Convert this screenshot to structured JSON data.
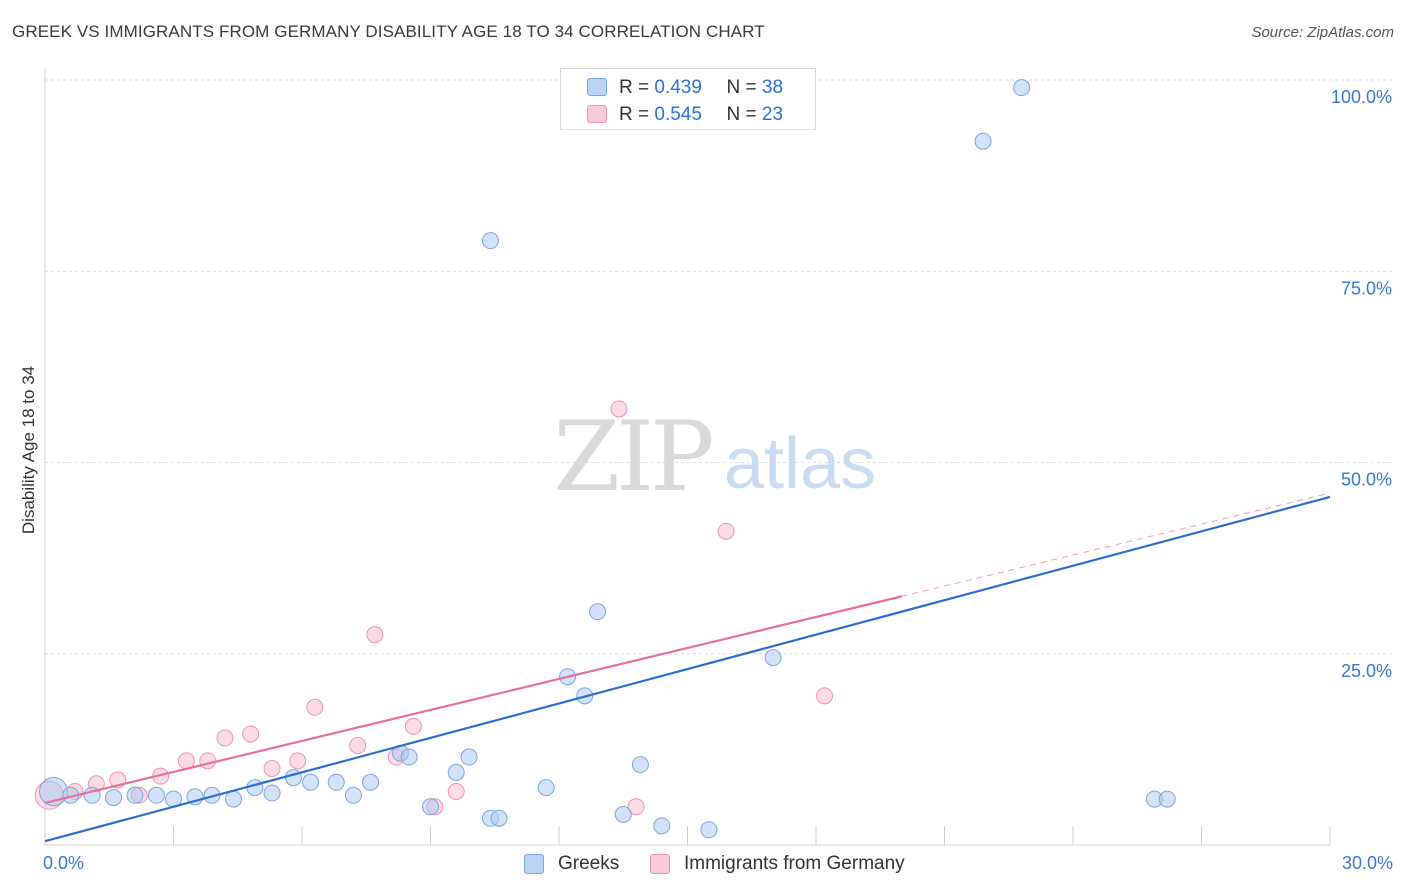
{
  "header": {
    "title": "GREEK VS IMMIGRANTS FROM GERMANY DISABILITY AGE 18 TO 34 CORRELATION CHART",
    "source": "Source: ZipAtlas.com"
  },
  "watermark": {
    "zip": "ZIP",
    "atlas": "atlas"
  },
  "legend": {
    "r_label": "R =",
    "n_label": "N =",
    "greeks": {
      "r": "0.439",
      "n": "38"
    },
    "germany": {
      "r": "0.545",
      "n": "23"
    }
  },
  "colors": {
    "greeks_fill": "#aecbf2",
    "greeks_stroke": "#7aa6e0",
    "greeks_line": "#2d6fd0",
    "germany_fill": "#f7bfd0",
    "germany_stroke": "#ee92b0",
    "germany_line": "#e7709a",
    "tick_text": "#3a78cf",
    "grid": "#dcdcdc"
  },
  "chart_data": {
    "type": "scatter",
    "title": "GREEK VS IMMIGRANTS FROM GERMANY DISABILITY AGE 18 TO 34 CORRELATION CHART",
    "xlabel": "",
    "ylabel": "Disability Age 18 to 34",
    "xlim": [
      0,
      30
    ],
    "ylim": [
      0,
      100
    ],
    "x_tick_labels": [
      "0.0%",
      "30.0%"
    ],
    "y_tick_values": [
      25,
      50,
      75,
      100
    ],
    "y_tick_labels": [
      "25.0%",
      "50.0%",
      "75.0%",
      "100.0%"
    ],
    "grid": true,
    "legend_position": "top-center",
    "series": [
      {
        "name": "Greeks",
        "r": 0.439,
        "n": 38,
        "points": [
          [
            0.2,
            7.0
          ],
          [
            0.6,
            6.5
          ],
          [
            1.1,
            6.5
          ],
          [
            1.6,
            6.2
          ],
          [
            2.1,
            6.5
          ],
          [
            2.6,
            6.5
          ],
          [
            3.0,
            6.0
          ],
          [
            3.5,
            6.3
          ],
          [
            3.9,
            6.5
          ],
          [
            4.4,
            6.0
          ],
          [
            4.9,
            7.5
          ],
          [
            5.3,
            6.8
          ],
          [
            5.8,
            8.8
          ],
          [
            6.2,
            8.2
          ],
          [
            6.8,
            8.2
          ],
          [
            7.2,
            6.5
          ],
          [
            7.6,
            8.2
          ],
          [
            8.3,
            12.0
          ],
          [
            8.5,
            11.5
          ],
          [
            9.0,
            5.0
          ],
          [
            9.6,
            9.5
          ],
          [
            9.9,
            11.5
          ],
          [
            10.4,
            3.5
          ],
          [
            10.6,
            3.5
          ],
          [
            11.7,
            7.5
          ],
          [
            12.2,
            22.0
          ],
          [
            12.6,
            19.5
          ],
          [
            12.9,
            30.5
          ],
          [
            13.5,
            4.0
          ],
          [
            13.9,
            10.5
          ],
          [
            14.4,
            2.5
          ],
          [
            15.5,
            2.0
          ],
          [
            17.0,
            24.5
          ],
          [
            10.4,
            79.0
          ],
          [
            21.9,
            92.0
          ],
          [
            22.8,
            99.0
          ],
          [
            25.9,
            6.0
          ],
          [
            26.2,
            6.0
          ]
        ],
        "trend": {
          "x": [
            0,
            30
          ],
          "y": [
            0.5,
            45.5
          ]
        }
      },
      {
        "name": "Immigrants from Germany",
        "r": 0.545,
        "n": 23,
        "points": [
          [
            0.1,
            6.5
          ],
          [
            0.7,
            7.0
          ],
          [
            1.2,
            8.0
          ],
          [
            1.7,
            8.5
          ],
          [
            2.2,
            6.5
          ],
          [
            2.7,
            9.0
          ],
          [
            3.3,
            11.0
          ],
          [
            3.8,
            11.0
          ],
          [
            4.2,
            14.0
          ],
          [
            4.8,
            14.5
          ],
          [
            5.3,
            10.0
          ],
          [
            5.9,
            11.0
          ],
          [
            6.3,
            18.0
          ],
          [
            7.3,
            13.0
          ],
          [
            7.7,
            27.5
          ],
          [
            8.2,
            11.5
          ],
          [
            8.6,
            15.5
          ],
          [
            9.1,
            5.0
          ],
          [
            9.6,
            7.0
          ],
          [
            13.4,
            57.0
          ],
          [
            13.8,
            5.0
          ],
          [
            15.9,
            41.0
          ],
          [
            18.2,
            19.5
          ]
        ],
        "trend": {
          "x": [
            0,
            20
          ],
          "y": [
            5.5,
            32.5
          ]
        },
        "trend_dashed": {
          "x": [
            20,
            30
          ],
          "y": [
            32.5,
            46.0
          ]
        }
      }
    ]
  },
  "bottom_legend": {
    "greeks": "Greeks",
    "germany": "Immigrants from Germany"
  }
}
